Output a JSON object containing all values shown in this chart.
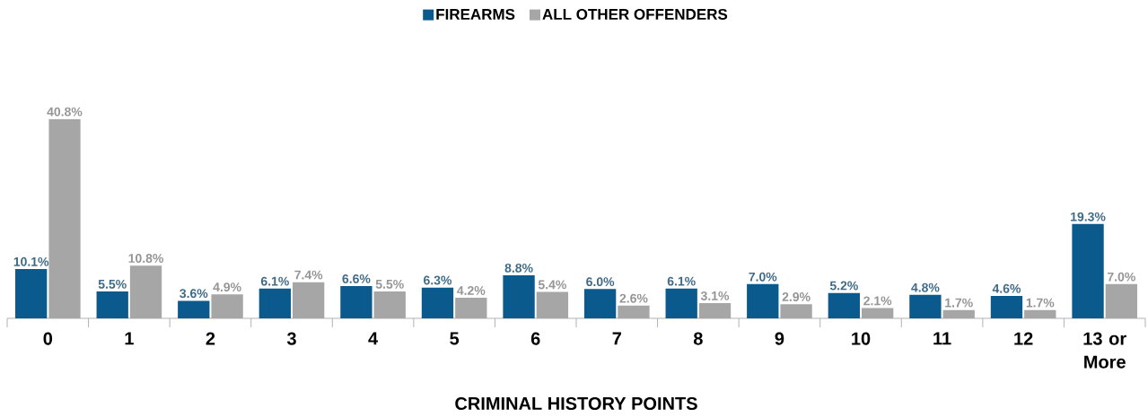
{
  "chart_data": {
    "type": "bar",
    "xlabel": "CRIMINAL HISTORY POINTS",
    "categories": [
      "0",
      "1",
      "2",
      "3",
      "4",
      "5",
      "6",
      "7",
      "8",
      "9",
      "10",
      "11",
      "12",
      "13 or More"
    ],
    "series": [
      {
        "name": "FIREARMS",
        "color": "#0b5a8e",
        "values": [
          10.1,
          5.5,
          3.6,
          6.1,
          6.6,
          6.3,
          8.8,
          6.0,
          6.1,
          7.0,
          5.2,
          4.8,
          4.6,
          19.3
        ],
        "value_labels": [
          "10.1%",
          "5.5%",
          "3.6%",
          "6.1%",
          "6.6%",
          "6.3%",
          "8.8%",
          "6.0%",
          "6.1%",
          "7.0%",
          "5.2%",
          "4.8%",
          "4.6%",
          "19.3%"
        ]
      },
      {
        "name": "ALL OTHER OFFENDERS",
        "color": "#a6a6a6",
        "values": [
          40.8,
          10.8,
          4.9,
          7.4,
          5.5,
          4.2,
          5.4,
          2.6,
          3.1,
          2.9,
          2.1,
          1.7,
          1.7,
          7.0
        ],
        "value_labels": [
          "40.8%",
          "10.8%",
          "4.9%",
          "7.4%",
          "5.5%",
          "4.2%",
          "5.4%",
          "2.6%",
          "3.1%",
          "2.9%",
          "2.1%",
          "1.7%",
          "1.7%",
          "7.0%"
        ]
      }
    ],
    "legend": "top",
    "tick_labels": "x"
  }
}
